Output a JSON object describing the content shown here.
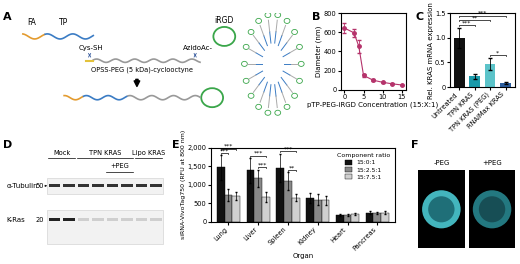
{
  "panel_labels": [
    "A",
    "B",
    "C",
    "D",
    "E",
    "F"
  ],
  "panel_a": {
    "fa": "FA",
    "tp": "TP",
    "cys": "Cys-SH",
    "irgd": "iRGD",
    "azido": "AzidoAc-",
    "peg": "OPSS-PEG (5 kDa)-cyclooctyne"
  },
  "chart_data": [
    {
      "type": "line",
      "x": [
        0,
        2.5,
        3.75,
        5,
        7.5,
        10,
        12.5,
        15
      ],
      "values": [
        645,
        595,
        455,
        150,
        100,
        78,
        62,
        50
      ],
      "errors": [
        55,
        40,
        70,
        15,
        8,
        6,
        5,
        4
      ],
      "xlabel": "pTP-PEG-iRGD Concentration (15:X:1)",
      "ylabel": "Diameter (nm)",
      "xlim": [
        -1,
        16
      ],
      "xticks": [
        0,
        5,
        10,
        15
      ],
      "ylim": [
        0,
        800
      ],
      "yticks": [
        0,
        200,
        400,
        600,
        800
      ],
      "color": "#b5336b",
      "marker": "o"
    },
    {
      "type": "bar",
      "categories": [
        "Untreated",
        "TPN KRAS",
        "TPN KRAS (PEG)",
        "RNAiMax KRAS"
      ],
      "values": [
        1.0,
        0.22,
        0.47,
        0.08
      ],
      "errors": [
        0.2,
        0.05,
        0.13,
        0.02
      ],
      "ylabel": "Rel. KRAS mRNA expression",
      "ylim": [
        0,
        1.5
      ],
      "yticks": [
        0,
        0.5,
        {
          "value": 1,
          "label": "1.0"
        },
        1.5
      ],
      "colors": [
        "#111111",
        "#1a9aaa",
        "#5cc3c9",
        "#2b5d9e"
      ],
      "annotations": [
        {
          "from": "Untreated",
          "to": "TPN KRAS",
          "text": "***"
        },
        {
          "from": "Untreated",
          "to": "TPN KRAS (PEG)",
          "text": "**"
        },
        {
          "from": "Untreated",
          "to": "RNAiMax KRAS",
          "text": "***"
        },
        {
          "from": "TPN KRAS (PEG)",
          "to": "RNAiMax KRAS",
          "text": "*"
        }
      ]
    },
    {
      "type": "bar",
      "categories": [
        "Lung",
        "Liver",
        "Spleen",
        "Kidney",
        "Heart",
        "Pancreas"
      ],
      "series": [
        {
          "name": "15:0:1",
          "color": "#111111",
          "values": [
            1470,
            1390,
            1460,
            650,
            190,
            250
          ],
          "errors": [
            330,
            330,
            380,
            130,
            30,
            40
          ]
        },
        {
          "name": "15:2.5:1",
          "color": "#888888",
          "values": [
            720,
            1180,
            1100,
            600,
            190,
            230
          ],
          "errors": [
            160,
            230,
            240,
            160,
            30,
            30
          ]
        },
        {
          "name": "15:7.5:1",
          "color": "#d0d0d0",
          "values": [
            700,
            670,
            650,
            580,
            210,
            240
          ],
          "errors": [
            110,
            130,
            100,
            120,
            40,
            40
          ]
        }
      ],
      "xlabel": "Organ",
      "ylabel": "siRNA-VivoTag750 (RFU at 800 nm)",
      "ylim": [
        0,
        2000
      ],
      "yticks": [
        0,
        500,
        {
          "value": 1000,
          "label": "1,000"
        },
        {
          "value": 1500,
          "label": "1,500"
        },
        {
          "value": 2000,
          "label": "2,000"
        }
      ],
      "legend": "upper right",
      "legend_title": "Component ratio",
      "annotations": [
        {
          "category": "Lung",
          "from": "15:0:1",
          "to": "15:2.5:1",
          "text": "***"
        },
        {
          "category": "Lung",
          "from": "15:0:1",
          "to": "15:7.5:1",
          "text": "***"
        },
        {
          "category": "Liver",
          "from": "15:0:1",
          "to": "15:7.5:1",
          "text": "***"
        },
        {
          "category": "Liver",
          "from": "15:2.5:1",
          "to": "15:7.5:1",
          "text": "***"
        },
        {
          "category": "Spleen",
          "from": "15:0:1",
          "to": "15:7.5:1",
          "text": "***"
        },
        {
          "category": "Spleen",
          "from": "15:2.5:1",
          "to": "15:7.5:1",
          "text": "**"
        }
      ]
    }
  ],
  "panel_d": {
    "lanes": [
      "Mock",
      "TPN KRAS",
      "+PEG",
      "Lipo KRAS"
    ],
    "rows": [
      "α-Tubulin",
      "K-Ras"
    ],
    "markers": [
      50,
      20
    ]
  },
  "panel_f": {
    "labels": [
      "-PEG",
      "+PEG"
    ]
  }
}
